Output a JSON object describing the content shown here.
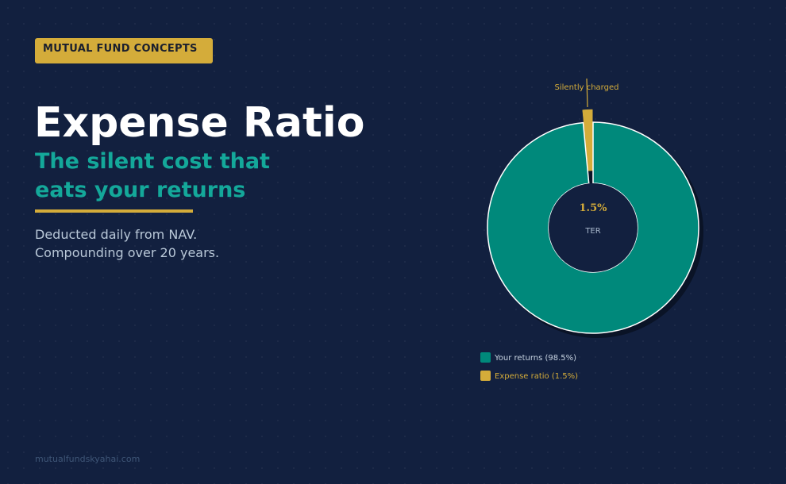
{
  "badge": {
    "label": "MUTUAL FUND CONCEPTS"
  },
  "heading": {
    "title": "Expense Ratio",
    "subtitle_line1": "The silent cost that",
    "subtitle_line2": "eats your returns"
  },
  "description": {
    "line1": "Deducted daily from NAV.",
    "line2": "Compounding over 20 years."
  },
  "footer": {
    "site": "mutualfundskyahai.com"
  },
  "colors": {
    "background": "#12203f",
    "accent_gold": "#d4ac3a",
    "teal": "#00897b",
    "subtitle_teal": "#14a89a"
  },
  "chart_data": {
    "type": "pie",
    "variant": "donut",
    "slices": [
      {
        "label": "Your returns (98.5%)",
        "value": 98.5,
        "color": "#00897b"
      },
      {
        "label": "Expense ratio (1.5%)",
        "value": 1.5,
        "color": "#d4ac3a",
        "exploded": true
      }
    ],
    "center_value": "1.5%",
    "center_label": "TER",
    "annotation": "Silently charged",
    "legend_position": "bottom-left"
  }
}
